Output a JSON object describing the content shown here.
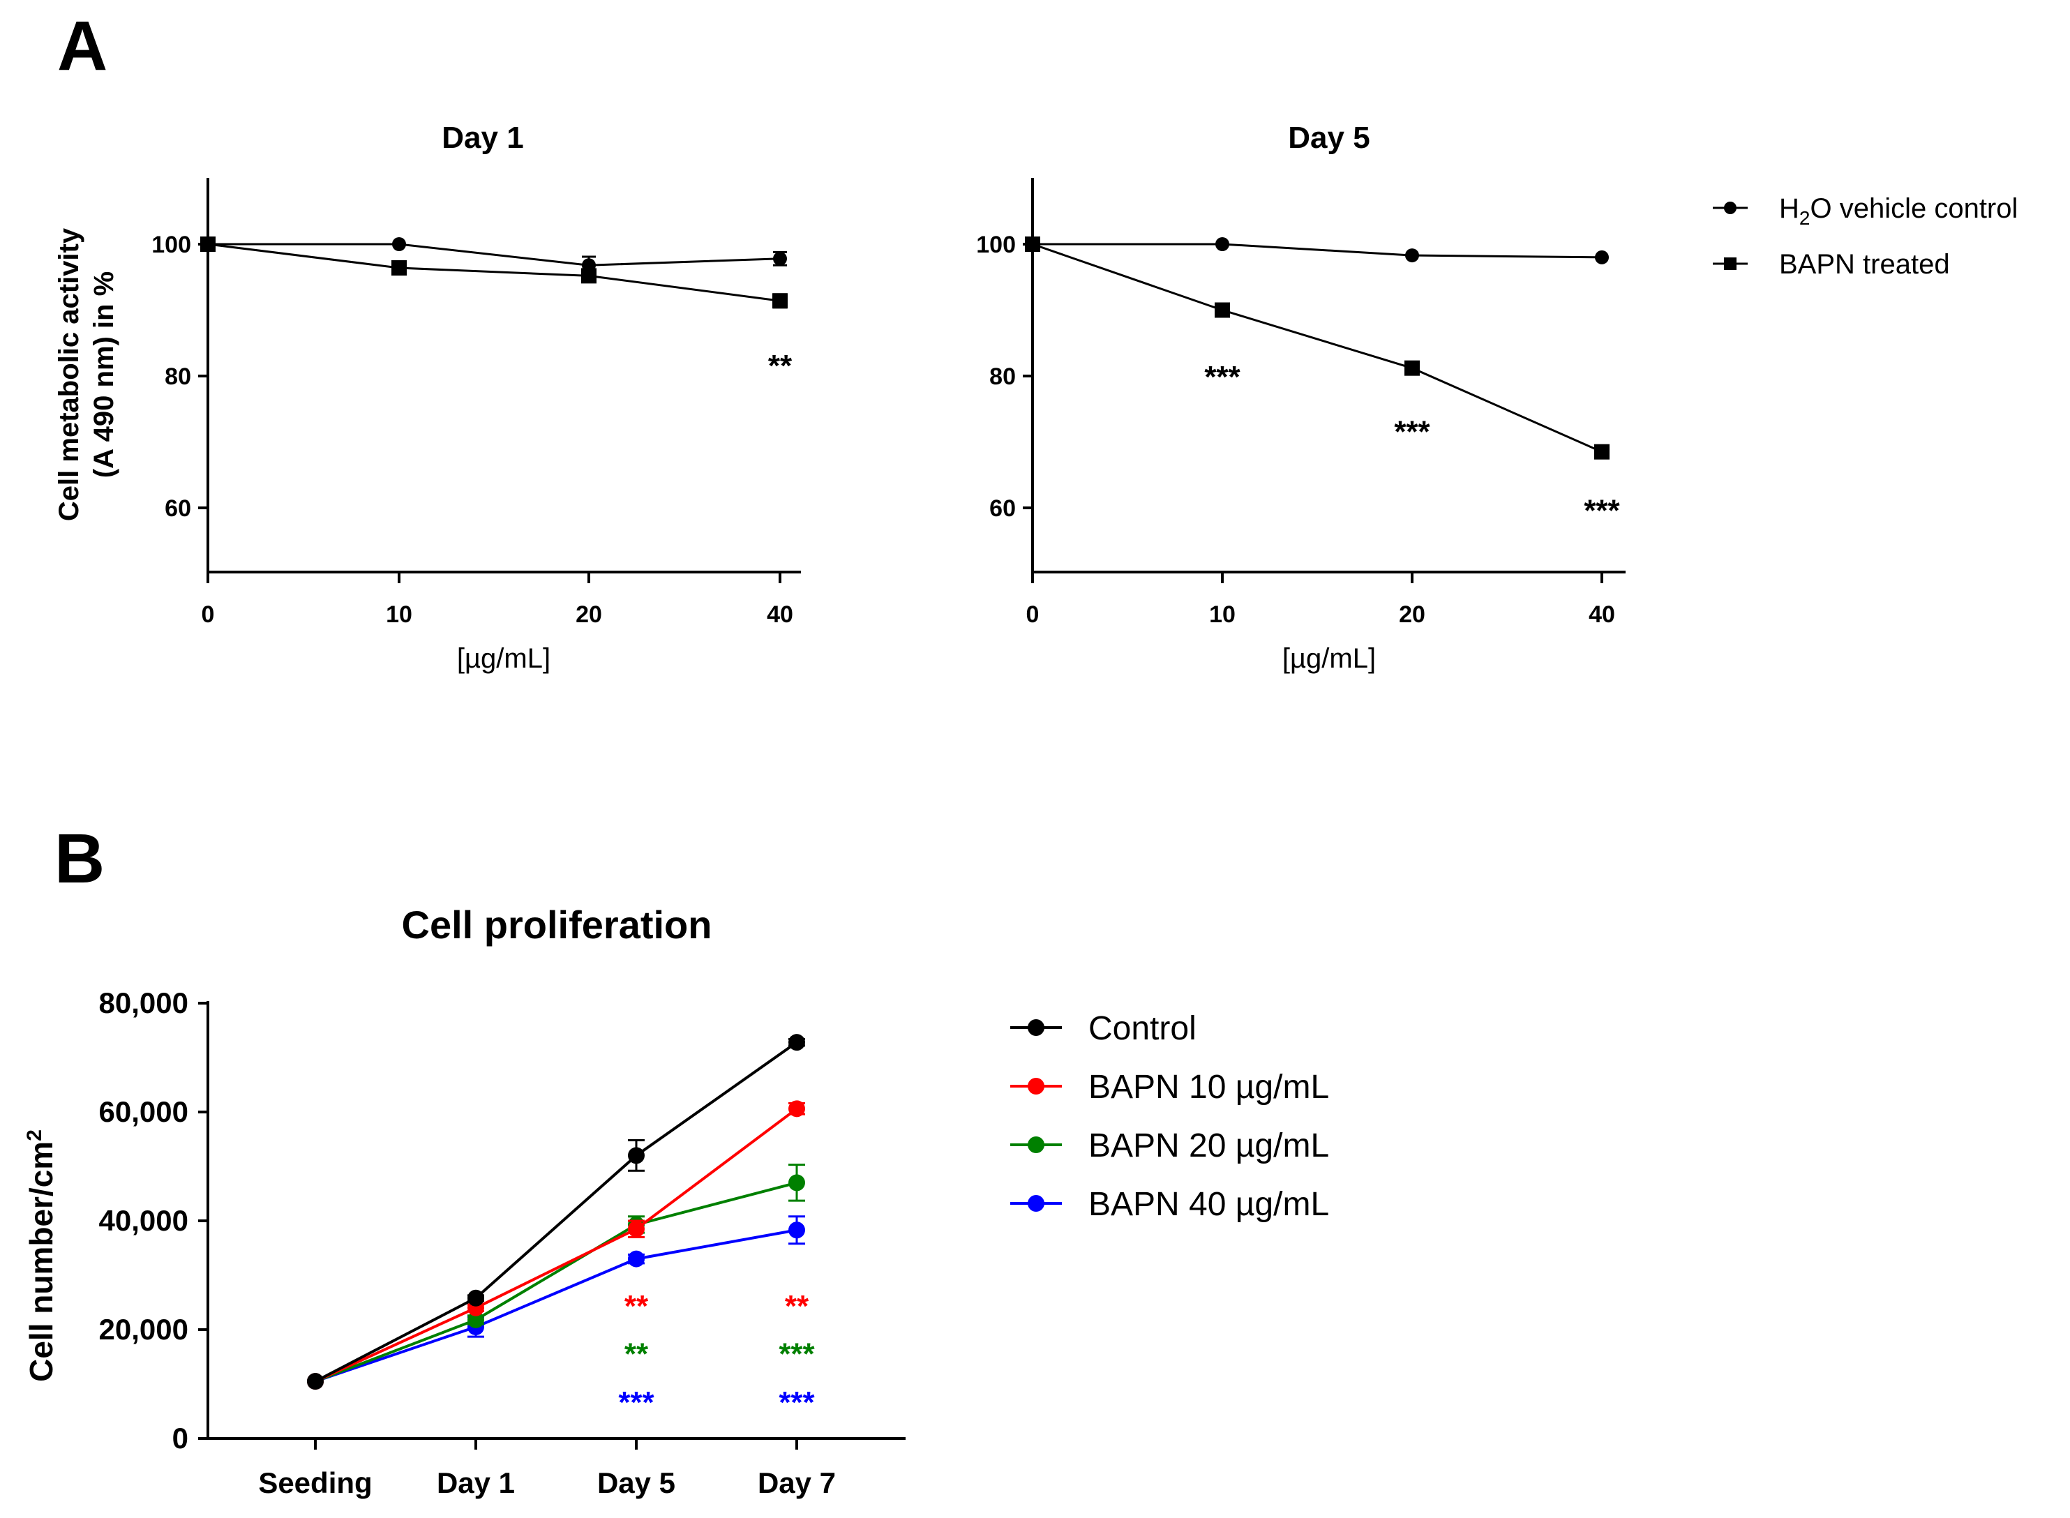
{
  "panel_labels": {
    "a": "A",
    "b": "B"
  },
  "chart_data": [
    {
      "id": "day1",
      "type": "line",
      "title": "Day 1",
      "xlabel": "[µg/mL]",
      "ylabel_line1": "Cell metabolic activity",
      "ylabel_line2": "(A 490 nm) in %",
      "x": [
        0,
        10,
        20,
        40
      ],
      "x_tick_labels": [
        "0",
        "10",
        "20",
        "40"
      ],
      "ylim": [
        50,
        110
      ],
      "y_ticks": [
        60,
        80,
        100
      ],
      "series": [
        {
          "name": "H2O vehicle control",
          "marker": "circle",
          "values": [
            100,
            100,
            96.8,
            97.8
          ],
          "errors": [
            0,
            0,
            1.3,
            1.0
          ]
        },
        {
          "name": "BAPN treated",
          "marker": "square",
          "values": [
            100,
            96.4,
            95.2,
            91.4
          ],
          "errors": [
            0,
            0.9,
            0.9,
            1.0
          ]
        }
      ],
      "annotations": [
        {
          "x": 40,
          "y": 81.5,
          "text": "**",
          "color": "#000000"
        }
      ]
    },
    {
      "id": "day5",
      "type": "line",
      "title": "Day 5",
      "xlabel": "[µg/mL]",
      "x": [
        0,
        10,
        20,
        40
      ],
      "x_tick_labels": [
        "0",
        "10",
        "20",
        "40"
      ],
      "ylim": [
        50,
        110
      ],
      "y_ticks": [
        60,
        80,
        100
      ],
      "series": [
        {
          "name": "H2O vehicle control",
          "marker": "circle",
          "values": [
            100,
            100,
            98.3,
            98.0
          ],
          "errors": [
            0,
            0,
            0,
            0
          ]
        },
        {
          "name": "BAPN treated",
          "marker": "square",
          "values": [
            100,
            90.0,
            81.2,
            68.5
          ],
          "errors": [
            0,
            0,
            0,
            0
          ]
        }
      ],
      "annotations": [
        {
          "x": 10,
          "y": 79.8,
          "text": "***",
          "color": "#000000"
        },
        {
          "x": 20,
          "y": 71.5,
          "text": "***",
          "color": "#000000"
        },
        {
          "x": 40,
          "y": 59.5,
          "text": "***",
          "color": "#000000"
        }
      ]
    },
    {
      "id": "proliferation",
      "type": "line",
      "title": "Cell proliferation",
      "xlabel": "",
      "ylabel": "Cell number/cm",
      "ylabel_sup": "2",
      "categories": [
        "Seeding",
        "Day 1",
        "Day 5",
        "Day 7"
      ],
      "ylim": [
        0,
        80000
      ],
      "y_ticks": [
        0,
        20000,
        40000,
        60000,
        80000
      ],
      "y_tick_labels": [
        "0",
        "20,000",
        "40,000",
        "60,000",
        "80,000"
      ],
      "series": [
        {
          "name": "Control",
          "color": "#000000",
          "values": [
            10500,
            25800,
            52000,
            72800
          ],
          "errors": [
            0,
            500,
            2800,
            600
          ]
        },
        {
          "name": "BAPN 10 µg/mL",
          "color": "#ff0000",
          "values": [
            10500,
            24000,
            38500,
            60600
          ],
          "errors": [
            0,
            600,
            1500,
            1000
          ]
        },
        {
          "name": "BAPN 20 µg/mL",
          "color": "#008000",
          "values": [
            10500,
            21800,
            39300,
            47000
          ],
          "errors": [
            0,
            800,
            1500,
            3300
          ]
        },
        {
          "name": "BAPN 40 µg/mL",
          "color": "#0000ff",
          "values": [
            10500,
            20500,
            33000,
            38300
          ],
          "errors": [
            0,
            1800,
            800,
            2500
          ]
        }
      ],
      "annotations": [
        {
          "category": "Day 5",
          "y": 24500,
          "text": "**",
          "color": "#ff0000"
        },
        {
          "category": "Day 5",
          "y": 15700,
          "text": "**",
          "color": "#008000"
        },
        {
          "category": "Day 5",
          "y": 6800,
          "text": "***",
          "color": "#0000ff"
        },
        {
          "category": "Day 7",
          "y": 24500,
          "text": "**",
          "color": "#ff0000"
        },
        {
          "category": "Day 7",
          "y": 15700,
          "text": "***",
          "color": "#008000"
        },
        {
          "category": "Day 7",
          "y": 6800,
          "text": "***",
          "color": "#0000ff"
        }
      ]
    }
  ],
  "legend_a": {
    "items": [
      {
        "prefix": "H",
        "sub": "2",
        "suffix": "O vehicle control",
        "marker": "circle"
      },
      {
        "label": "BAPN treated",
        "marker": "square"
      }
    ]
  },
  "legend_b": {
    "items": [
      {
        "label": "Control",
        "color": "#000000"
      },
      {
        "label": "BAPN 10 µg/mL",
        "color": "#ff0000"
      },
      {
        "label": "BAPN 20 µg/mL",
        "color": "#008000"
      },
      {
        "label": "BAPN 40 µg/mL",
        "color": "#0000ff"
      }
    ]
  }
}
